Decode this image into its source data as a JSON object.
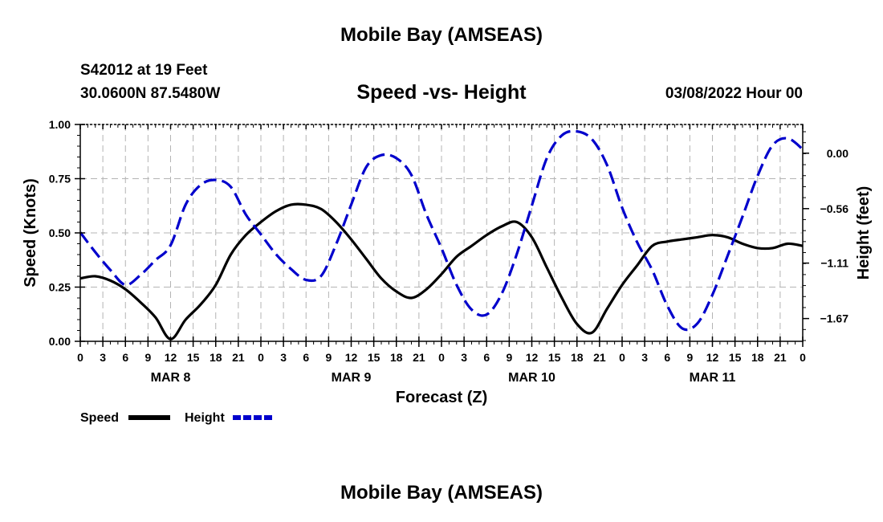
{
  "header": {
    "title": "Mobile Bay (AMSEAS)",
    "station": "S42012 at 19 Feet",
    "coordinates": "30.0600N  87.5480W",
    "subtitle": "Speed -vs- Height",
    "forecast_time": "03/08/2022 Hour 00"
  },
  "footer": {
    "title": "Mobile Bay (AMSEAS)"
  },
  "chart_data": {
    "type": "line",
    "title": "Speed -vs- Height",
    "xlabel": "Forecast (Z)",
    "ylabel": "Speed (Knots)",
    "y2label": "Height (feet)",
    "x_unit": "hours",
    "xlim": [
      0,
      96
    ],
    "ylim": [
      0,
      1
    ],
    "y2lim": [
      -1.9,
      0.29
    ],
    "grid": true,
    "x_ticks": [
      0,
      3,
      6,
      9,
      12,
      15,
      18,
      21,
      24,
      27,
      30,
      33,
      36,
      39,
      42,
      45,
      48,
      51,
      54,
      57,
      60,
      63,
      66,
      69,
      72,
      75,
      78,
      81,
      84,
      87,
      90,
      93,
      96
    ],
    "x_tick_labels": [
      "0",
      "3",
      "6",
      "9",
      "12",
      "15",
      "18",
      "21",
      "0",
      "3",
      "6",
      "9",
      "12",
      "15",
      "18",
      "21",
      "0",
      "3",
      "6",
      "9",
      "12",
      "15",
      "18",
      "21",
      "0",
      "3",
      "6",
      "9",
      "12",
      "15",
      "18",
      "21",
      "0"
    ],
    "day_labels": [
      {
        "x": 12,
        "label": "MAR 8"
      },
      {
        "x": 36,
        "label": "MAR 9"
      },
      {
        "x": 60,
        "label": "MAR 10"
      },
      {
        "x": 84,
        "label": "MAR 11"
      }
    ],
    "y_ticks": [
      0,
      0.25,
      0.5,
      0.75,
      1.0
    ],
    "y_tick_labels": [
      "0.00",
      "0.25",
      "0.50",
      "0.75",
      "1.00"
    ],
    "y2_ticks": [
      0.0,
      -0.56,
      -1.11,
      -1.67
    ],
    "y2_tick_labels": [
      "0.00",
      "−0.56",
      "−1.11",
      "−1.67"
    ],
    "legend": {
      "placement": "bottom-left",
      "items": [
        {
          "label": "Speed",
          "color": "#000000",
          "style": "solid"
        },
        {
          "label": "Height",
          "color": "#0000cc",
          "style": "dashed"
        }
      ]
    },
    "series": [
      {
        "name": "Speed",
        "axis": "left",
        "color": "#000000",
        "style": "solid",
        "x": [
          0,
          2,
          4,
          6,
          8,
          10,
          12,
          14,
          16,
          18,
          20,
          22,
          24,
          26,
          28,
          30,
          32,
          34,
          36,
          38,
          40,
          42,
          44,
          46,
          48,
          50,
          52,
          54,
          56,
          58,
          60,
          62,
          64,
          66,
          68,
          70,
          72,
          74,
          76,
          78,
          80,
          82,
          84,
          86,
          88,
          90,
          92,
          94,
          96
        ],
        "y": [
          0.29,
          0.3,
          0.28,
          0.24,
          0.18,
          0.11,
          0.01,
          0.1,
          0.17,
          0.26,
          0.4,
          0.49,
          0.55,
          0.6,
          0.63,
          0.63,
          0.61,
          0.55,
          0.47,
          0.38,
          0.29,
          0.23,
          0.2,
          0.24,
          0.31,
          0.39,
          0.44,
          0.49,
          0.53,
          0.55,
          0.48,
          0.34,
          0.2,
          0.08,
          0.04,
          0.15,
          0.26,
          0.35,
          0.44,
          0.46,
          0.47,
          0.48,
          0.49,
          0.48,
          0.45,
          0.43,
          0.43,
          0.45,
          0.44
        ]
      },
      {
        "name": "Height",
        "axis": "right",
        "color": "#0000cc",
        "style": "dashed",
        "x": [
          0,
          2,
          4,
          6,
          8,
          10,
          12,
          14,
          16,
          18,
          20,
          22,
          24,
          26,
          28,
          30,
          32,
          34,
          36,
          38,
          40,
          42,
          44,
          46,
          48,
          50,
          52,
          54,
          56,
          58,
          60,
          62,
          64,
          66,
          68,
          70,
          72,
          74,
          76,
          78,
          80,
          82,
          84,
          86,
          88,
          90,
          92,
          94,
          96
        ],
        "y": [
          -0.8,
          -1.0,
          -1.18,
          -1.33,
          -1.23,
          -1.08,
          -0.93,
          -0.52,
          -0.32,
          -0.27,
          -0.34,
          -0.62,
          -0.82,
          -1.02,
          -1.17,
          -1.28,
          -1.24,
          -0.92,
          -0.52,
          -0.14,
          -0.02,
          -0.05,
          -0.22,
          -0.62,
          -0.96,
          -1.33,
          -1.58,
          -1.63,
          -1.42,
          -1.02,
          -0.53,
          -0.05,
          0.18,
          0.22,
          0.14,
          -0.12,
          -0.55,
          -0.9,
          -1.18,
          -1.54,
          -1.77,
          -1.72,
          -1.43,
          -1.04,
          -0.64,
          -0.23,
          0.08,
          0.15,
          0.04
        ]
      }
    ]
  }
}
